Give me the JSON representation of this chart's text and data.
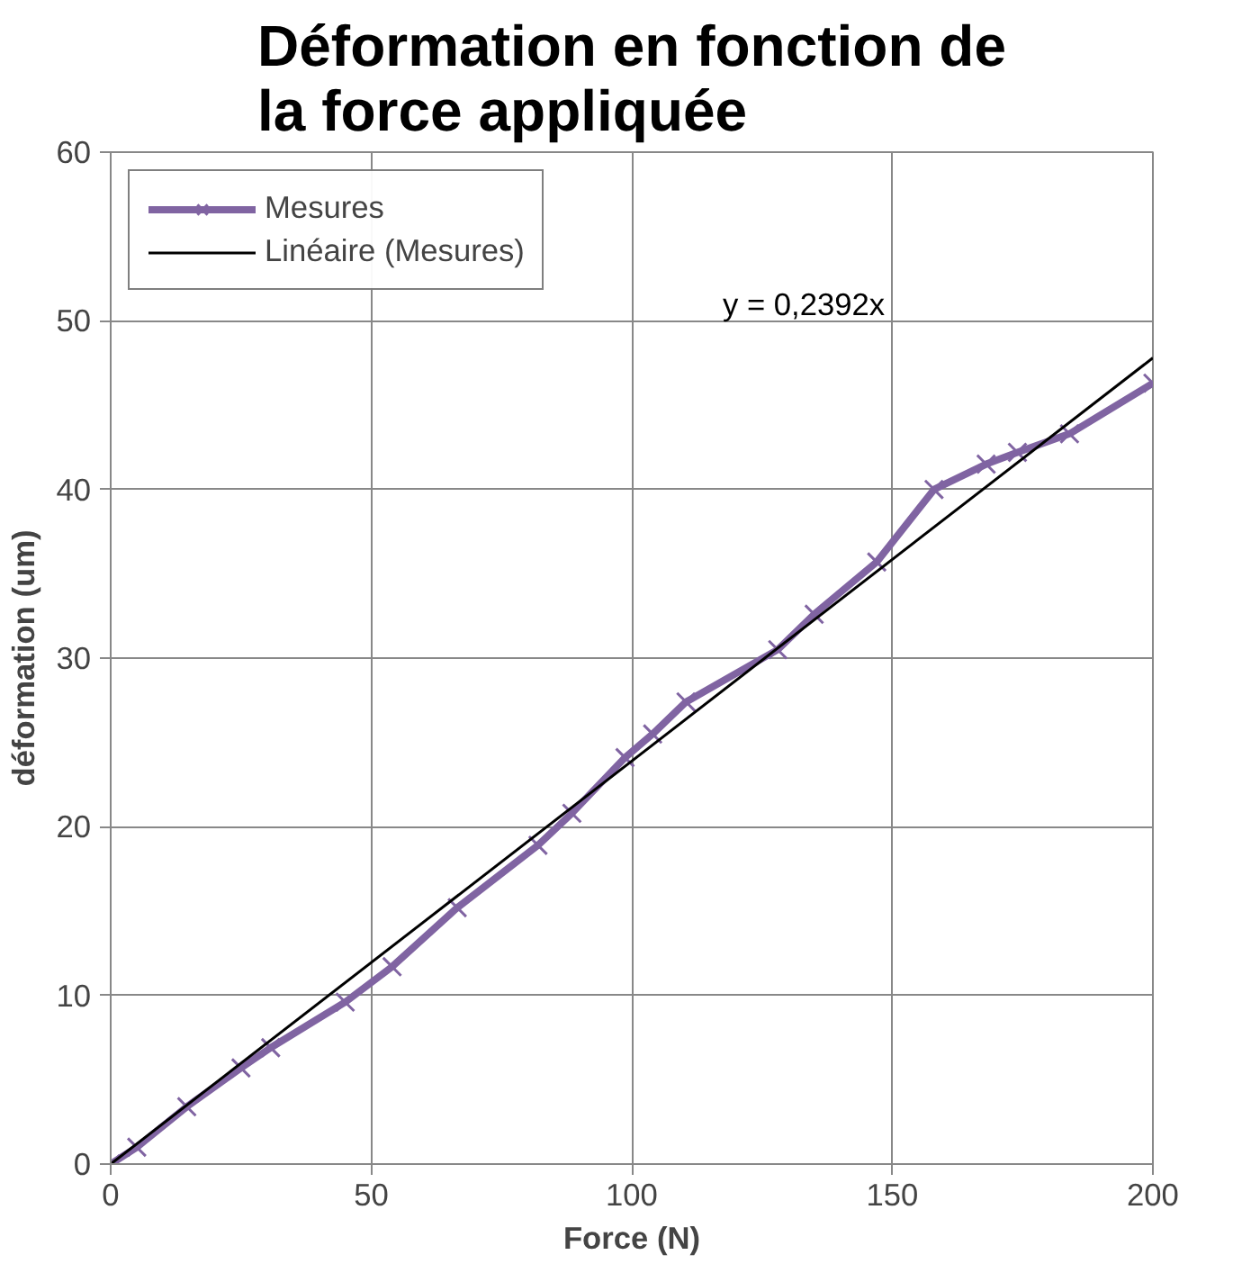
{
  "chart_data": {
    "type": "line",
    "title": "Déformation en fonction de la force appliquée",
    "xlabel": "Force (N)",
    "ylabel": "déformation (um)",
    "xlim": [
      0,
      200
    ],
    "xticks": [
      0,
      50,
      100,
      150,
      200
    ],
    "ylim": [
      0,
      60
    ],
    "yticks": [
      0,
      10,
      20,
      30,
      40,
      50,
      60
    ],
    "grid": true,
    "legend": "top left",
    "marker": "cross",
    "line_style": "solid",
    "series": [
      {
        "name": "Mesures",
        "color": "#8064a2",
        "x": [
          0,
          5,
          14.6,
          25,
          30.7,
          45,
          54,
          66.5,
          82,
          88.5,
          98.7,
          104,
          110.4,
          128,
          135,
          147,
          158,
          168,
          174,
          184,
          200
        ],
        "values": [
          0,
          1,
          3.4,
          5.7,
          6.9,
          9.6,
          11.7,
          15.2,
          18.9,
          20.8,
          24.1,
          25.5,
          27.4,
          30.5,
          32.6,
          35.7,
          40,
          41.5,
          42.2,
          43.3,
          46.3
        ]
      },
      {
        "name": "Linéaire (Mesures)",
        "type": "line",
        "color": "#000000",
        "marker": "none",
        "x": [
          0,
          200
        ],
        "values": [
          0,
          47.8
        ]
      }
    ],
    "annotations": [
      "y = 0,2392x"
    ]
  }
}
